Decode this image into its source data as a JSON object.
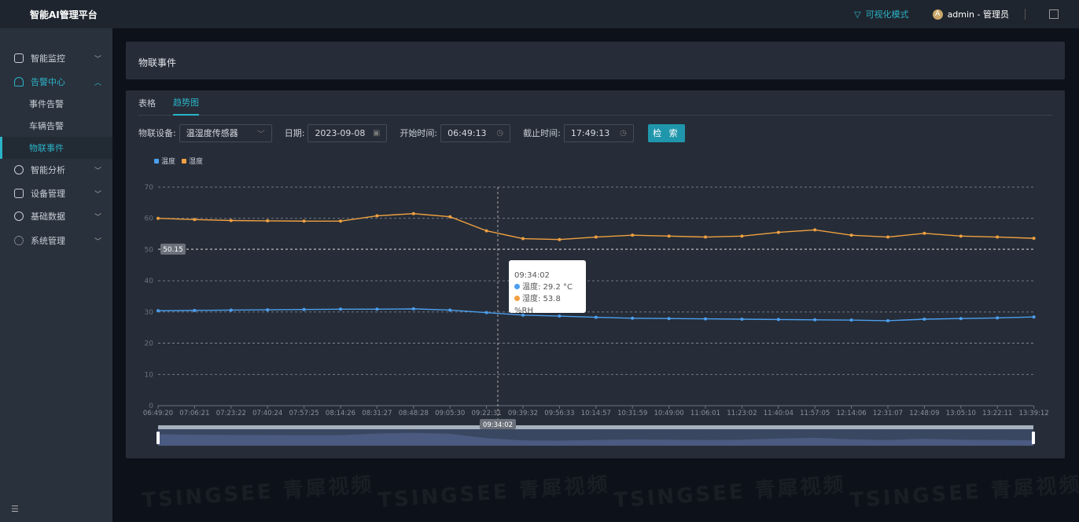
{
  "app": {
    "title": "智能AI管理平台",
    "visual_mode": "可视化模式",
    "user": "admin - 管理员",
    "avatar_letter": "A"
  },
  "sidebar": {
    "items": [
      {
        "label": "智能监控",
        "icon": "monitor-icon"
      },
      {
        "label": "告警中心",
        "icon": "bell-icon",
        "expanded": true,
        "children": [
          {
            "label": "事件告警"
          },
          {
            "label": "车辆告警"
          },
          {
            "label": "物联事件",
            "selected": true
          }
        ]
      },
      {
        "label": "智能分析",
        "icon": "compass-icon"
      },
      {
        "label": "设备管理",
        "icon": "camera-icon"
      },
      {
        "label": "基础数据",
        "icon": "compass-icon"
      },
      {
        "label": "系统管理",
        "icon": "gear-icon"
      }
    ]
  },
  "page": {
    "title": "物联事件"
  },
  "tabs": [
    {
      "label": "表格"
    },
    {
      "label": "趋势图",
      "active": true
    }
  ],
  "filters": {
    "device_label": "物联设备:",
    "device_value": "温湿度传感器",
    "date_label": "日期:",
    "date_value": "2023-09-08",
    "start_label": "开始时间:",
    "start_value": "06:49:13",
    "end_label": "截止时间:",
    "end_value": "17:49:13",
    "search": "检 索"
  },
  "watermark": "TSINGSEE 青犀视频",
  "chart_data": {
    "type": "line",
    "x": [
      "06:49:20",
      "07:06:21",
      "07:23:22",
      "07:40:24",
      "07:57:25",
      "08:14:26",
      "08:31:27",
      "08:48:28",
      "09:05:30",
      "09:22:31",
      "09:39:32",
      "09:56:33",
      "10:14:57",
      "10:31:59",
      "10:49:00",
      "11:06:01",
      "11:23:02",
      "11:40:04",
      "11:57:05",
      "12:14:06",
      "12:31:07",
      "12:48:09",
      "13:05:10",
      "13:22:11",
      "13:39:12"
    ],
    "series": [
      {
        "name": "温度",
        "color": "#4c9ff0",
        "values": [
          30.4,
          30.5,
          30.6,
          30.7,
          30.8,
          30.9,
          30.9,
          31.0,
          30.6,
          29.8,
          29.0,
          28.7,
          28.3,
          28.0,
          27.9,
          27.8,
          27.7,
          27.6,
          27.5,
          27.4,
          27.2,
          27.7,
          27.9,
          28.1,
          28.4
        ]
      },
      {
        "name": "湿度",
        "color": "#f0a040",
        "values": [
          60.0,
          59.6,
          59.3,
          59.2,
          59.1,
          59.1,
          60.8,
          61.5,
          60.5,
          56.0,
          53.5,
          53.2,
          54.0,
          54.6,
          54.3,
          54.0,
          54.3,
          55.5,
          56.3,
          54.6,
          54.0,
          55.2,
          54.3,
          54.0,
          53.6
        ]
      }
    ],
    "ylim": [
      0,
      70
    ],
    "yticks": [
      0,
      10,
      20,
      30,
      40,
      50,
      60,
      70
    ],
    "grid": true,
    "legend": "top-left",
    "axis_pointer": {
      "x": "09:34:02",
      "y": "50.15"
    },
    "tooltip": {
      "time": "09:34:02",
      "temp": "温度: 29.2 °C",
      "hum": "湿度: 53.8 %RH"
    }
  }
}
